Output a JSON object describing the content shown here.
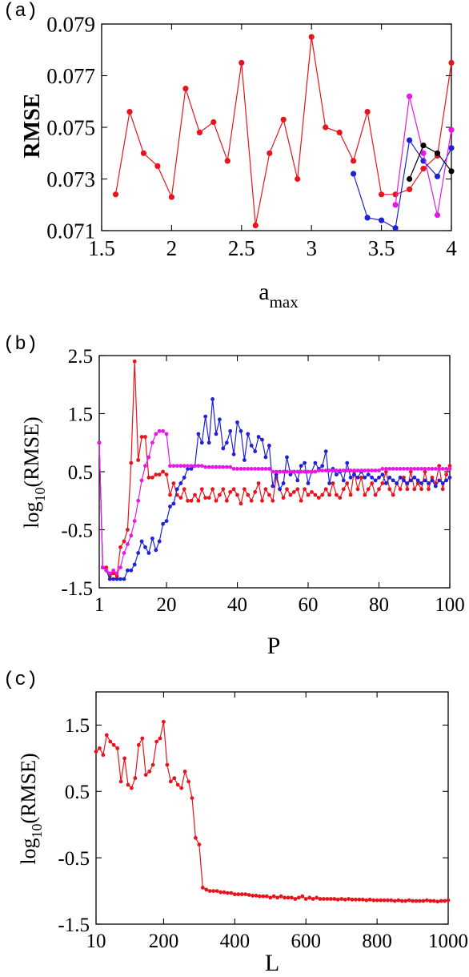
{
  "colors": {
    "red": "#e8141b",
    "blue": "#1f21d6",
    "magenta": "#e817e8",
    "black": "#000000",
    "axis": "#000000"
  },
  "chart_data": [
    {
      "panel": "(a)",
      "type": "line",
      "xlabel": "a",
      "xlabel_sub": "max",
      "ylabel": "RMSE",
      "xlim": [
        1.5,
        4.0
      ],
      "ylim": [
        0.071,
        0.079
      ],
      "xticks": [
        1.5,
        2,
        2.5,
        3,
        3.5,
        4
      ],
      "xtick_labels": [
        "1.5",
        "2",
        "2.5",
        "3",
        "3.5",
        "4"
      ],
      "yticks": [
        0.071,
        0.073,
        0.075,
        0.077,
        0.079
      ],
      "ytick_labels": [
        "0.071",
        "0.073",
        "0.075",
        "0.077",
        "0.079"
      ],
      "grid": false,
      "series": [
        {
          "color": "red",
          "x": [
            1.6,
            1.7,
            1.8,
            1.9,
            2.0,
            2.1,
            2.2,
            2.3,
            2.4,
            2.5,
            2.6,
            2.7,
            2.8,
            2.9,
            3.0,
            3.1,
            3.2,
            3.3,
            3.4,
            3.5,
            3.6,
            3.7,
            3.8,
            3.9,
            4.0
          ],
          "y": [
            0.0724,
            0.0756,
            0.074,
            0.0735,
            0.0723,
            0.0765,
            0.0748,
            0.0752,
            0.0737,
            0.0775,
            0.0712,
            0.074,
            0.0753,
            0.073,
            0.0785,
            0.075,
            0.0748,
            0.0737,
            0.0756,
            0.0724,
            0.0724,
            0.0726,
            0.0734,
            0.0739,
            0.0775
          ]
        },
        {
          "color": "blue",
          "x": [
            3.3,
            3.4,
            3.5,
            3.6,
            3.7,
            3.8,
            3.9,
            4.0
          ],
          "y": [
            0.0732,
            0.0715,
            0.0714,
            0.0711,
            0.0745,
            0.0737,
            0.0731,
            0.0742
          ]
        },
        {
          "color": "magenta",
          "x": [
            3.6,
            3.7,
            3.8,
            3.9,
            4.0
          ],
          "y": [
            0.072,
            0.0762,
            0.074,
            0.0716,
            0.0749
          ]
        },
        {
          "color": "black",
          "x": [
            3.7,
            3.8,
            3.9,
            4.0
          ],
          "y": [
            0.073,
            0.0743,
            0.074,
            0.0733
          ]
        }
      ]
    },
    {
      "panel": "(b)",
      "type": "line",
      "xlabel": "P",
      "ylabel": "log",
      "ylabel_sub": "10",
      "ylabel_tail": "(RMSE)",
      "xlim": [
        1,
        100
      ],
      "ylim": [
        -1.5,
        2.5
      ],
      "xticks": [
        1,
        20,
        40,
        60,
        80,
        100
      ],
      "xtick_labels": [
        "1",
        "20",
        "40",
        "60",
        "80",
        "100"
      ],
      "yticks": [
        -1.5,
        -0.5,
        0.5,
        1.5,
        2.5
      ],
      "ytick_labels": [
        "-1.5",
        "-0.5",
        "0.5",
        "1.5",
        "2.5"
      ],
      "grid": false,
      "series": [
        {
          "color": "red",
          "x_start": 1,
          "x_step": 1,
          "y": [
            1.0,
            -1.15,
            -1.15,
            -1.3,
            -1.25,
            -1.3,
            -0.8,
            -0.7,
            -0.5,
            0.65,
            2.4,
            0.7,
            1.1,
            1.1,
            0.4,
            0.4,
            0.45,
            0.45,
            0.5,
            0.45,
            0.1,
            0.3,
            0.1,
            0.05,
            0.2,
            0.0,
            0.0,
            0.1,
            0.0,
            0.2,
            0.05,
            0.05,
            0.2,
            0.0,
            0.1,
            0.2,
            0.0,
            0.15,
            0.2,
            0.1,
            -0.05,
            0.2,
            0.1,
            0.0,
            0.15,
            0.3,
            0.0,
            0.2,
            0.1,
            0.0,
            0.4,
            0.2,
            0.05,
            0.2,
            0.1,
            0.15,
            0.2,
            0.0,
            0.2,
            0.1,
            0.15,
            0.1,
            0.05,
            0.1,
            0.2,
            0.1,
            0.3,
            0.1,
            0.05,
            0.2,
            0.3,
            0.1,
            0.5,
            0.2,
            0.4,
            0.1,
            0.2,
            0.3,
            0.1,
            0.2,
            0.3,
            0.5,
            0.2,
            0.1,
            0.3,
            0.2,
            0.4,
            0.2,
            0.5,
            0.2,
            0.3,
            0.2,
            0.5,
            0.2,
            0.4,
            0.3,
            0.6,
            0.2,
            0.45,
            0.6
          ]
        },
        {
          "color": "blue",
          "x_start": 1,
          "x_step": 1,
          "y": [
            1.0,
            -1.15,
            -1.2,
            -1.35,
            -1.35,
            -1.35,
            -1.35,
            -1.35,
            -1.2,
            -1.2,
            -1.1,
            -0.9,
            -0.7,
            -0.8,
            -0.9,
            -0.65,
            -0.85,
            -0.7,
            -0.4,
            -0.35,
            -0.1,
            -0.05,
            0.2,
            0.3,
            0.4,
            0.55,
            0.55,
            0.6,
            1.15,
            1.0,
            1.45,
            1.0,
            1.75,
            1.15,
            1.4,
            0.9,
            1.0,
            1.2,
            0.8,
            1.35,
            1.2,
            0.7,
            1.15,
            0.95,
            0.85,
            1.1,
            1.05,
            0.75,
            0.95,
            0.25,
            0.45,
            0.2,
            0.3,
            0.75,
            0.45,
            0.5,
            0.35,
            0.6,
            0.65,
            0.3,
            0.5,
            0.65,
            0.55,
            0.6,
            0.85,
            0.3,
            0.55,
            0.45,
            0.5,
            0.35,
            0.65,
            0.4,
            0.45,
            0.4,
            0.5,
            0.4,
            0.45,
            0.4,
            0.35,
            0.4,
            0.45,
            0.3,
            0.4,
            0.35,
            0.3,
            0.4,
            0.35,
            0.3,
            0.35,
            0.4,
            0.35,
            0.3,
            0.35,
            0.3,
            0.35,
            0.25,
            0.35,
            0.3,
            0.35,
            0.4
          ]
        },
        {
          "color": "magenta",
          "x_start": 1,
          "x_step": 1,
          "y": [
            1.0,
            -1.15,
            -1.2,
            -1.25,
            -1.2,
            -1.25,
            -1.15,
            -0.9,
            -0.75,
            -0.6,
            -0.35,
            0.0,
            0.35,
            0.6,
            0.75,
            1.0,
            1.15,
            1.2,
            1.2,
            1.15,
            0.6,
            0.6,
            0.6,
            0.6,
            0.6,
            0.6,
            0.6,
            0.6,
            0.6,
            0.6,
            0.58,
            0.58,
            0.58,
            0.58,
            0.58,
            0.58,
            0.58,
            0.58,
            0.55,
            0.55,
            0.55,
            0.55,
            0.55,
            0.55,
            0.55,
            0.55,
            0.55,
            0.55,
            0.55,
            0.5,
            0.5,
            0.5,
            0.5,
            0.5,
            0.5,
            0.5,
            0.5,
            0.5,
            0.5,
            0.5,
            0.5,
            0.5,
            0.52,
            0.52,
            0.52,
            0.52,
            0.52,
            0.52,
            0.52,
            0.52,
            0.52,
            0.52,
            0.52,
            0.52,
            0.52,
            0.52,
            0.52,
            0.52,
            0.52,
            0.52,
            0.55,
            0.55,
            0.55,
            0.55,
            0.55,
            0.55,
            0.55,
            0.55,
            0.55,
            0.55,
            0.55,
            0.55,
            0.55,
            0.55,
            0.55,
            0.55,
            0.55,
            0.55,
            0.55,
            0.55
          ]
        }
      ]
    },
    {
      "panel": "(c)",
      "type": "line",
      "xlabel": "L",
      "ylabel": "log",
      "ylabel_sub": "10",
      "ylabel_tail": "(RMSE)",
      "xlim": [
        10,
        1000
      ],
      "ylim": [
        -1.5,
        2.0
      ],
      "xticks": [
        10,
        200,
        400,
        600,
        800,
        1000
      ],
      "xtick_labels": [
        "10",
        "200",
        "400",
        "600",
        "800",
        "1000"
      ],
      "yticks": [
        -1.5,
        -0.5,
        0.5,
        1.5
      ],
      "ytick_labels": [
        "-1.5",
        "-0.5",
        "0.5",
        "1.5"
      ],
      "grid": false,
      "series": [
        {
          "color": "red",
          "x_start": 10,
          "x_step": 10,
          "y": [
            1.1,
            1.15,
            1.05,
            1.35,
            1.25,
            1.2,
            1.15,
            0.65,
            1.0,
            0.6,
            0.55,
            0.7,
            1.2,
            1.3,
            0.75,
            0.8,
            0.9,
            1.25,
            1.3,
            1.55,
            0.9,
            0.65,
            0.7,
            0.6,
            0.55,
            0.8,
            0.65,
            0.4,
            -0.2,
            -0.3,
            -0.95,
            -0.98,
            -1.0,
            -1.0,
            -1.0,
            -1.02,
            -1.02,
            -1.03,
            -1.03,
            -1.05,
            -1.05,
            -1.05,
            -1.05,
            -1.06,
            -1.07,
            -1.07,
            -1.08,
            -1.08,
            -1.08,
            -1.1,
            -1.08,
            -1.1,
            -1.08,
            -1.1,
            -1.1,
            -1.1,
            -1.12,
            -1.1,
            -1.08,
            -1.12,
            -1.1,
            -1.12,
            -1.1,
            -1.12,
            -1.12,
            -1.12,
            -1.12,
            -1.12,
            -1.13,
            -1.12,
            -1.13,
            -1.12,
            -1.13,
            -1.13,
            -1.13,
            -1.13,
            -1.14,
            -1.13,
            -1.14,
            -1.14,
            -1.14,
            -1.14,
            -1.14,
            -1.14,
            -1.15,
            -1.14,
            -1.15,
            -1.15,
            -1.14,
            -1.15,
            -1.15,
            -1.15,
            -1.15,
            -1.14,
            -1.15,
            -1.15,
            -1.16,
            -1.15,
            -1.15,
            -1.14
          ]
        }
      ]
    }
  ]
}
